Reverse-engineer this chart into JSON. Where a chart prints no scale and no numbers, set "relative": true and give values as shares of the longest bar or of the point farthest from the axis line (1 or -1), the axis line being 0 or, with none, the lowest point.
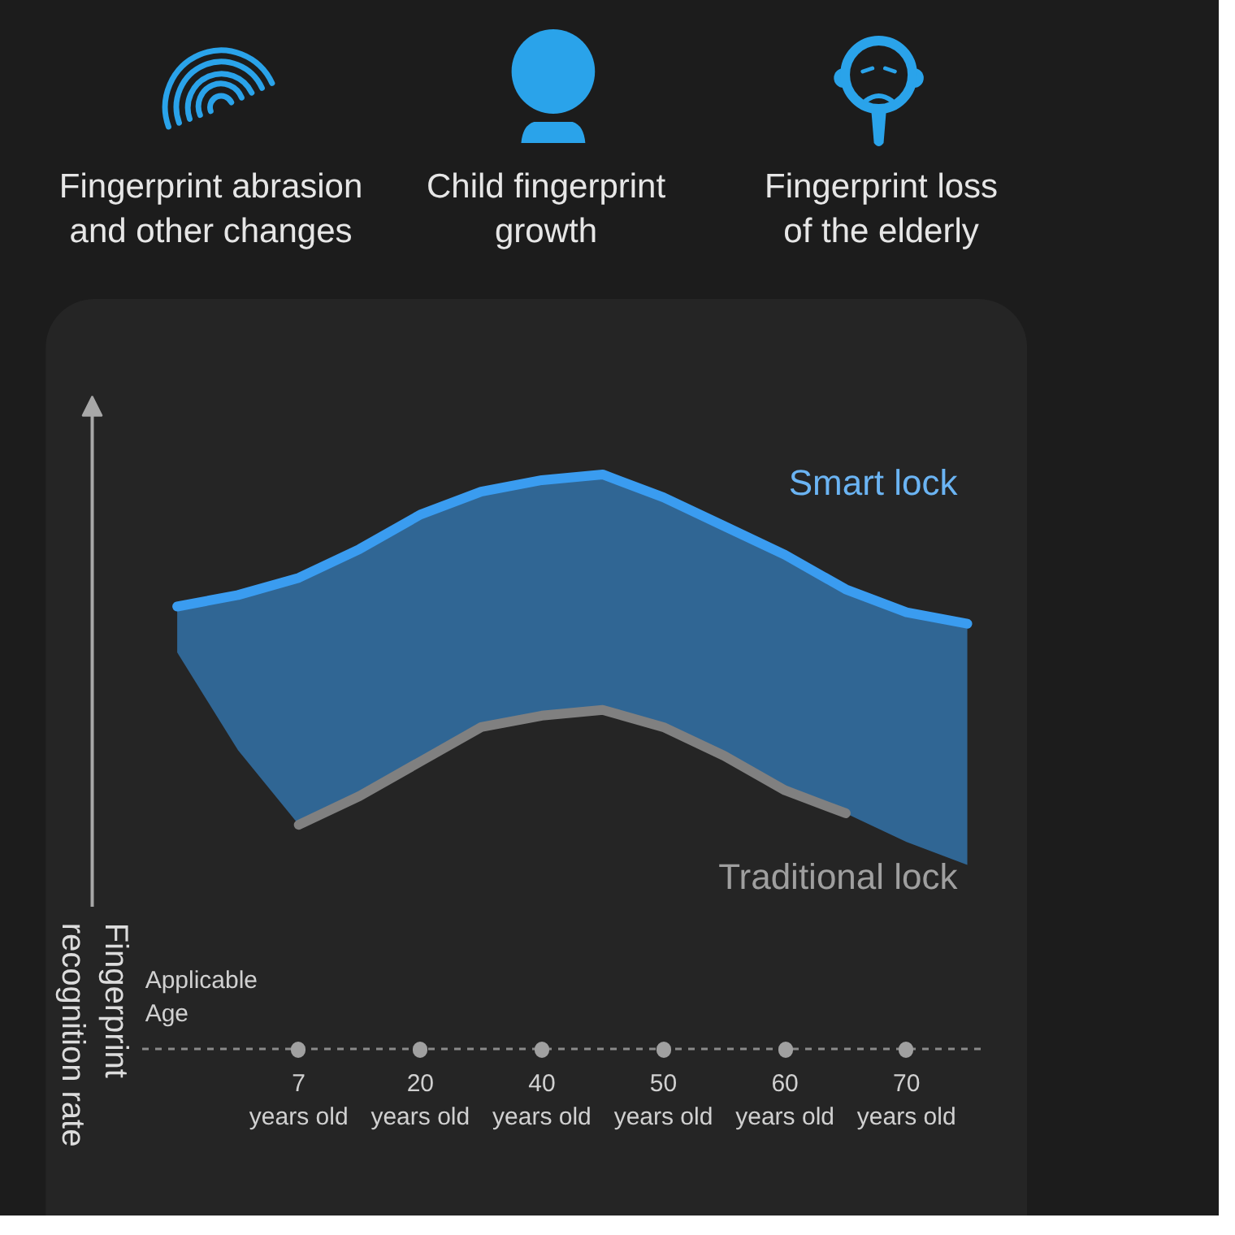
{
  "chart_data": {
    "type": "line",
    "relative": true,
    "categories": [
      null,
      null,
      "7 years old",
      null,
      "20 years old",
      null,
      "40 years old",
      null,
      "50 years old",
      null,
      "60 years old",
      null,
      "70 years old",
      null
    ],
    "xlabel": "Applicable Age",
    "ylabel": "Fingerprint recognition rate",
    "series": [
      {
        "name": "Smart lock",
        "color": "#3a9cf0",
        "values": [
          0.77,
          0.79,
          0.82,
          0.87,
          0.93,
          0.97,
          0.99,
          1.0,
          0.96,
          0.91,
          0.86,
          0.8,
          0.76,
          0.74
        ],
        "lower": [
          0.69,
          0.52,
          0.39,
          0.44,
          0.5,
          0.56,
          0.58,
          0.59,
          0.56,
          0.51,
          0.45,
          0.41,
          0.36,
          0.32
        ],
        "upper": [
          0.77,
          0.79,
          0.82,
          0.87,
          0.93,
          0.97,
          0.99,
          1.0,
          0.96,
          0.91,
          0.86,
          0.8,
          0.76,
          0.74
        ]
      },
      {
        "name": "Traditional lock",
        "color": "#808080",
        "values": [
          null,
          null,
          0.39,
          0.44,
          0.5,
          0.56,
          0.58,
          0.59,
          0.56,
          0.51,
          0.45,
          0.41,
          null,
          null
        ]
      }
    ],
    "annotations": [
      "Fingerprint abrasion and other changes",
      "Child fingerprint growth",
      "Fingerprint loss of the elderly"
    ]
  }
}
